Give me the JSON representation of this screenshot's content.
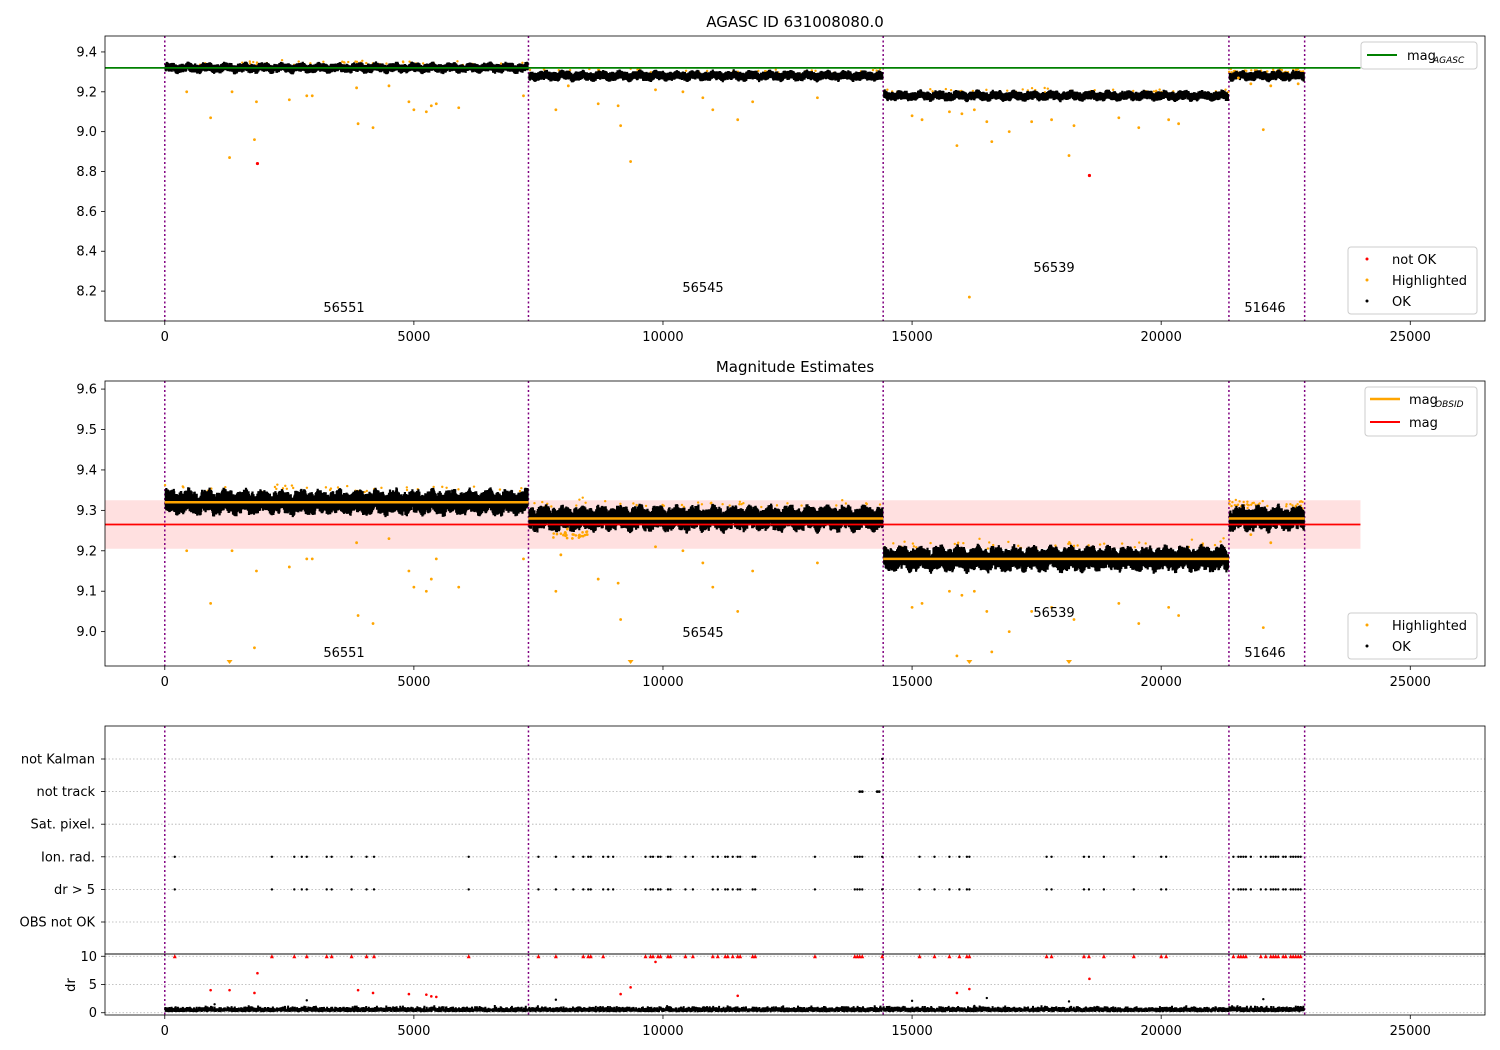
{
  "figure": {
    "title": "AGASC ID 631008080.0",
    "x_ticks": [
      0,
      5000,
      10000,
      15000,
      20000,
      25000
    ],
    "xlim": [
      -1200,
      26500
    ],
    "obs_boundaries": [
      0,
      7300,
      14420,
      21360,
      22880
    ],
    "colors": {
      "ok": "#000000",
      "highlighted": "#ffa500",
      "not_ok": "#ff0000",
      "mag_agasc": "#008000",
      "mag": "#ff0000",
      "mag_obsid": "#ffa500",
      "boundary": "#800080",
      "band": "#ffcccc"
    }
  },
  "panels": {
    "top": {
      "title": "AGASC ID 631008080.0",
      "ylim": [
        8.05,
        9.48
      ],
      "y_ticks": [
        8.2,
        8.4,
        8.6,
        8.8,
        9.0,
        9.2,
        9.4
      ],
      "mag_agasc": 9.32,
      "obsid_labels": [
        {
          "text": "56551",
          "x": 3650,
          "y": 8.12
        },
        {
          "text": "56545",
          "x": 10820,
          "y": 8.22
        },
        {
          "text": "56539",
          "x": 17850,
          "y": 8.32
        },
        {
          "text": "51646",
          "x": 22120,
          "y": 8.12
        }
      ],
      "legend_upper": {
        "entry": "mag",
        "subscript": "AGASC"
      },
      "legend_lower": [
        "not OK",
        "Highlighted",
        "OK"
      ]
    },
    "middle": {
      "title": "Magnitude Estimates",
      "ylim": [
        8.915,
        9.62
      ],
      "y_ticks": [
        9.0,
        9.1,
        9.2,
        9.3,
        9.4,
        9.5,
        9.6
      ],
      "mag": 9.265,
      "mag_band": [
        9.205,
        9.325
      ],
      "obsid_labels": [
        {
          "text": "56551",
          "x": 3650,
          "y": 8.94
        },
        {
          "text": "56545",
          "x": 10820,
          "y": 8.99
        },
        {
          "text": "56539",
          "x": 17850,
          "y": 9.04
        },
        {
          "text": "51646",
          "x": 22120,
          "y": 8.94
        }
      ],
      "legend_upper": [
        {
          "entry": "mag",
          "subscript": "OBSID"
        },
        {
          "entry": "mag",
          "subscript": ""
        }
      ],
      "legend_lower": [
        "Highlighted",
        "OK"
      ]
    },
    "flags": {
      "categories": [
        "not Kalman",
        "not track",
        "Sat. pixel.",
        "Ion. rad.",
        "dr > 5",
        "OBS not OK"
      ]
    },
    "dr": {
      "ylabel": "dr",
      "ylim": [
        -0.4,
        10.4
      ],
      "y_ticks": [
        0,
        5,
        10
      ]
    }
  },
  "chart_data": [
    {
      "type": "scatter",
      "title": "AGASC ID 631008080.0",
      "xlabel": "",
      "ylabel": "",
      "xlim": [
        -1200,
        26500
      ],
      "ylim": [
        8.05,
        9.48
      ],
      "grid": false,
      "legend": [
        "upper right: mag_AGASC",
        "lower right: not OK, Highlighted, OK"
      ],
      "obsid_segments": [
        {
          "obsid": "56551",
          "x": [
            0,
            7300
          ],
          "mag": 9.32
        },
        {
          "obsid": "56545",
          "x": [
            7300,
            14420
          ],
          "mag": 9.28
        },
        {
          "obsid": "56539",
          "x": [
            14420,
            21360
          ],
          "mag": 9.18
        },
        {
          "obsid": "51646",
          "x": [
            21360,
            22880
          ],
          "mag": 9.28
        }
      ],
      "mag_agasc": 9.32,
      "not_ok_points": [
        {
          "x": 1860,
          "y": 8.84
        },
        {
          "x": 18560,
          "y": 8.78
        }
      ],
      "highlighted_points": [
        {
          "x": 440,
          "y": 9.2
        },
        {
          "x": 920,
          "y": 9.07
        },
        {
          "x": 1300,
          "y": 8.87
        },
        {
          "x": 1350,
          "y": 9.2
        },
        {
          "x": 1800,
          "y": 8.96
        },
        {
          "x": 1840,
          "y": 9.15
        },
        {
          "x": 2500,
          "y": 9.16
        },
        {
          "x": 2850,
          "y": 9.18
        },
        {
          "x": 2960,
          "y": 9.18
        },
        {
          "x": 3850,
          "y": 9.22
        },
        {
          "x": 3880,
          "y": 9.04
        },
        {
          "x": 4180,
          "y": 9.02
        },
        {
          "x": 4500,
          "y": 9.23
        },
        {
          "x": 4900,
          "y": 9.15
        },
        {
          "x": 5000,
          "y": 9.11
        },
        {
          "x": 5250,
          "y": 9.1
        },
        {
          "x": 5350,
          "y": 9.13
        },
        {
          "x": 5450,
          "y": 9.14
        },
        {
          "x": 5900,
          "y": 9.12
        },
        {
          "x": 7200,
          "y": 9.18
        },
        {
          "x": 7850,
          "y": 9.11
        },
        {
          "x": 8100,
          "y": 9.23
        },
        {
          "x": 8700,
          "y": 9.14
        },
        {
          "x": 9100,
          "y": 9.13
        },
        {
          "x": 9150,
          "y": 9.03
        },
        {
          "x": 9350,
          "y": 8.85
        },
        {
          "x": 9850,
          "y": 9.21
        },
        {
          "x": 10400,
          "y": 9.2
        },
        {
          "x": 10800,
          "y": 9.17
        },
        {
          "x": 11000,
          "y": 9.11
        },
        {
          "x": 11500,
          "y": 9.06
        },
        {
          "x": 11800,
          "y": 9.15
        },
        {
          "x": 13100,
          "y": 9.17
        },
        {
          "x": 15000,
          "y": 9.08
        },
        {
          "x": 15200,
          "y": 9.06
        },
        {
          "x": 15750,
          "y": 9.1
        },
        {
          "x": 15900,
          "y": 8.93
        },
        {
          "x": 16000,
          "y": 9.09
        },
        {
          "x": 16150,
          "y": 8.17
        },
        {
          "x": 16250,
          "y": 9.11
        },
        {
          "x": 16500,
          "y": 9.05
        },
        {
          "x": 16600,
          "y": 8.95
        },
        {
          "x": 16950,
          "y": 9.0
        },
        {
          "x": 17400,
          "y": 9.05
        },
        {
          "x": 17800,
          "y": 9.06
        },
        {
          "x": 18150,
          "y": 8.88
        },
        {
          "x": 18250,
          "y": 9.03
        },
        {
          "x": 19150,
          "y": 9.07
        },
        {
          "x": 19550,
          "y": 9.02
        },
        {
          "x": 20150,
          "y": 9.06
        },
        {
          "x": 20350,
          "y": 9.04
        },
        {
          "x": 21550,
          "y": 9.27
        },
        {
          "x": 21800,
          "y": 9.24
        },
        {
          "x": 22050,
          "y": 9.01
        },
        {
          "x": 22200,
          "y": 9.23
        },
        {
          "x": 22750,
          "y": 9.24
        }
      ]
    },
    {
      "type": "scatter",
      "title": "Magnitude Estimates",
      "xlabel": "",
      "ylabel": "",
      "xlim": [
        -1200,
        26500
      ],
      "ylim": [
        8.915,
        9.62
      ],
      "grid": false,
      "legend": [
        "upper right: mag_OBSID, mag",
        "lower right: Highlighted, OK"
      ],
      "mag": 9.265,
      "mag_band": [
        9.205,
        9.325
      ],
      "mag_obsid": [
        {
          "obsid": "56551",
          "x": [
            0,
            7300
          ],
          "mag": 9.32
        },
        {
          "obsid": "56545",
          "x": [
            7300,
            14420
          ],
          "mag": 9.28
        },
        {
          "obsid": "56539",
          "x": [
            14420,
            21360
          ],
          "mag": 9.18
        },
        {
          "obsid": "51646",
          "x": [
            21360,
            22880
          ],
          "mag": 9.28
        }
      ],
      "highlighted_points": [
        {
          "x": 440,
          "y": 9.2
        },
        {
          "x": 920,
          "y": 9.07
        },
        {
          "x": 1350,
          "y": 9.2
        },
        {
          "x": 1800,
          "y": 8.96
        },
        {
          "x": 1840,
          "y": 9.15
        },
        {
          "x": 2500,
          "y": 9.16
        },
        {
          "x": 2850,
          "y": 9.18
        },
        {
          "x": 2960,
          "y": 9.18
        },
        {
          "x": 3850,
          "y": 9.22
        },
        {
          "x": 3880,
          "y": 9.04
        },
        {
          "x": 4180,
          "y": 9.02
        },
        {
          "x": 4500,
          "y": 9.23
        },
        {
          "x": 4900,
          "y": 9.15
        },
        {
          "x": 5000,
          "y": 9.11
        },
        {
          "x": 5250,
          "y": 9.1
        },
        {
          "x": 5350,
          "y": 9.13
        },
        {
          "x": 5450,
          "y": 9.18
        },
        {
          "x": 5900,
          "y": 9.11
        },
        {
          "x": 7200,
          "y": 9.18
        },
        {
          "x": 7850,
          "y": 9.1
        },
        {
          "x": 7950,
          "y": 9.19
        },
        {
          "x": 8700,
          "y": 9.13
        },
        {
          "x": 9100,
          "y": 9.12
        },
        {
          "x": 9150,
          "y": 9.03
        },
        {
          "x": 9850,
          "y": 9.21
        },
        {
          "x": 10400,
          "y": 9.2
        },
        {
          "x": 10800,
          "y": 9.17
        },
        {
          "x": 11000,
          "y": 9.11
        },
        {
          "x": 11500,
          "y": 9.05
        },
        {
          "x": 11800,
          "y": 9.15
        },
        {
          "x": 13100,
          "y": 9.17
        },
        {
          "x": 15000,
          "y": 9.06
        },
        {
          "x": 15200,
          "y": 9.07
        },
        {
          "x": 15750,
          "y": 9.1
        },
        {
          "x": 15900,
          "y": 8.94
        },
        {
          "x": 16000,
          "y": 9.09
        },
        {
          "x": 16250,
          "y": 9.1
        },
        {
          "x": 16500,
          "y": 9.05
        },
        {
          "x": 16600,
          "y": 8.95
        },
        {
          "x": 16950,
          "y": 9.0
        },
        {
          "x": 17400,
          "y": 9.05
        },
        {
          "x": 17800,
          "y": 9.06
        },
        {
          "x": 18250,
          "y": 9.03
        },
        {
          "x": 19150,
          "y": 9.07
        },
        {
          "x": 19550,
          "y": 9.02
        },
        {
          "x": 20150,
          "y": 9.06
        },
        {
          "x": 20350,
          "y": 9.04
        },
        {
          "x": 21800,
          "y": 9.24
        },
        {
          "x": 22050,
          "y": 9.01
        },
        {
          "x": 22200,
          "y": 9.22
        }
      ],
      "off_scale_points": [
        {
          "x": 1300,
          "y": 8.915
        },
        {
          "x": 9350,
          "y": 8.915
        },
        {
          "x": 16150,
          "y": 8.915
        },
        {
          "x": 18150,
          "y": 8.915
        }
      ]
    },
    {
      "type": "scatter",
      "title": "",
      "xlabel": "",
      "ylabel": "",
      "categories": [
        "not Kalman",
        "not track",
        "Sat. pixel.",
        "Ion. rad.",
        "dr > 5",
        "OBS not OK"
      ],
      "grid": true,
      "flag_points": {
        "not Kalman": [
          14400
        ],
        "not track": [
          13950,
          14000,
          14300,
          14340
        ],
        "Ion. rad.": [
          200,
          2150,
          2600,
          2750,
          2850,
          3250,
          3350,
          3750,
          4050,
          4200,
          6100,
          7500,
          7850,
          8200,
          8400,
          8500,
          8550,
          8800,
          8900,
          9000,
          9650,
          9750,
          9800,
          9900,
          9950,
          10100,
          10150,
          10450,
          10600,
          11000,
          11100,
          11250,
          11300,
          11400,
          11500,
          11550,
          11800,
          11850,
          13050,
          13850,
          13900,
          13950,
          14000,
          14400,
          15150,
          15450,
          15750,
          15950,
          16100,
          16150,
          17700,
          17800,
          18450,
          18550,
          18850,
          19450,
          20000,
          20100,
          21450,
          21550,
          21600,
          21650,
          21700,
          21800,
          22000,
          22100,
          22200,
          22250,
          22300,
          22350,
          22450,
          22500,
          22600,
          22650,
          22700,
          22750,
          22800
        ]
      }
    },
    {
      "type": "scatter",
      "title": "",
      "xlabel": "",
      "ylabel": "dr",
      "xlim": [
        -1200,
        26500
      ],
      "ylim": [
        -0.4,
        10.4
      ],
      "grid": true,
      "clipped_points_at_10": [
        200,
        2150,
        2600,
        2850,
        3250,
        3350,
        3750,
        4050,
        4200,
        6100,
        7500,
        7850,
        8400,
        8500,
        8550,
        8800,
        9650,
        9750,
        9800,
        9900,
        9950,
        10100,
        10150,
        10450,
        10600,
        11000,
        11100,
        11250,
        11300,
        11400,
        11500,
        11550,
        11800,
        11850,
        13050,
        13850,
        13900,
        13950,
        14000,
        14400,
        15150,
        15450,
        15750,
        15950,
        16100,
        16150,
        17700,
        17800,
        18450,
        18550,
        18850,
        19450,
        20000,
        20100,
        21450,
        21550,
        21600,
        21650,
        21700,
        22000,
        22100,
        22200,
        22250,
        22300,
        22350,
        22450,
        22500,
        22600,
        22650,
        22700,
        22750,
        22800
      ],
      "red_points": [
        {
          "x": 920,
          "y": 4.0
        },
        {
          "x": 1300,
          "y": 4.0
        },
        {
          "x": 1800,
          "y": 3.5
        },
        {
          "x": 1860,
          "y": 7.0
        },
        {
          "x": 3880,
          "y": 4.0
        },
        {
          "x": 4180,
          "y": 3.5
        },
        {
          "x": 4900,
          "y": 3.3
        },
        {
          "x": 5250,
          "y": 3.2
        },
        {
          "x": 5350,
          "y": 2.9
        },
        {
          "x": 5450,
          "y": 2.8
        },
        {
          "x": 9150,
          "y": 3.3
        },
        {
          "x": 9350,
          "y": 4.5
        },
        {
          "x": 9850,
          "y": 9.0
        },
        {
          "x": 11500,
          "y": 3.0
        },
        {
          "x": 15900,
          "y": 3.5
        },
        {
          "x": 16150,
          "y": 4.2
        },
        {
          "x": 18560,
          "y": 6.0
        }
      ],
      "black_points": [
        {
          "x": 1000,
          "y": 1.5
        },
        {
          "x": 2850,
          "y": 2.2
        },
        {
          "x": 7850,
          "y": 2.3
        },
        {
          "x": 15000,
          "y": 2.1
        },
        {
          "x": 16500,
          "y": 2.6
        },
        {
          "x": 18150,
          "y": 2.0
        },
        {
          "x": 22050,
          "y": 2.4
        },
        {
          "x": 16250,
          "y": 1.2
        }
      ]
    }
  ]
}
